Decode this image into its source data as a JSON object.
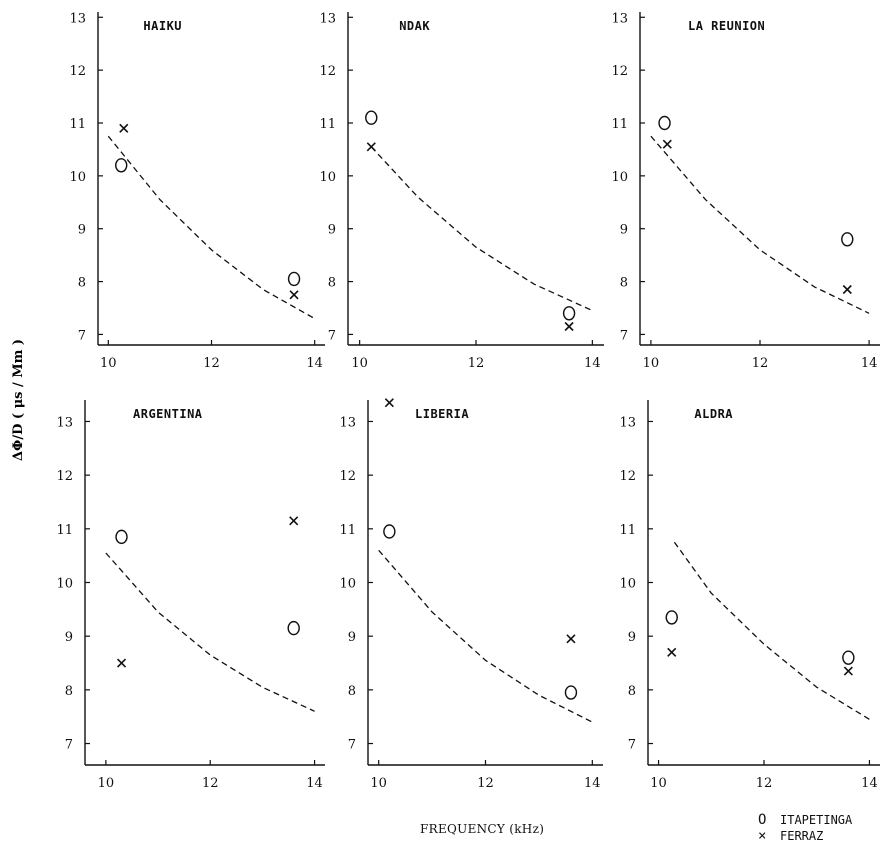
{
  "ylabel": "ΔΦ/D ( μs / Mm )",
  "xlabel": "FREQUENCY   (kHz)",
  "legend": [
    {
      "symbol": "circle",
      "glyph": "O",
      "label": "ITAPETINGA"
    },
    {
      "symbol": "cross",
      "glyph": "×",
      "label": "FERRAZ"
    }
  ],
  "chart_data": [
    {
      "type": "scatter",
      "title": "HAIKU",
      "x_ticks": [
        "10",
        "12",
        "14"
      ],
      "y_ticks": [
        "7",
        "8",
        "9",
        "10",
        "11",
        "12",
        "13"
      ],
      "xlim": [
        9.8,
        14.2
      ],
      "ylim": [
        6.8,
        13.1
      ],
      "series": [
        {
          "name": "ITAPETINGA",
          "marker": "circle",
          "x": [
            10.25,
            13.6
          ],
          "y": [
            10.2,
            8.05
          ]
        },
        {
          "name": "FERRAZ",
          "marker": "cross",
          "x": [
            10.3,
            13.6
          ],
          "y": [
            10.9,
            7.75
          ]
        }
      ],
      "curve": {
        "style": "dashed",
        "x": [
          10.0,
          11.0,
          12.0,
          13.0,
          14.0
        ],
        "y": [
          10.75,
          9.55,
          8.6,
          7.85,
          7.3
        ]
      }
    },
    {
      "type": "scatter",
      "title": "NDAK",
      "x_ticks": [
        "10",
        "12",
        "14"
      ],
      "y_ticks": [
        "7",
        "8",
        "9",
        "10",
        "11",
        "12",
        "13"
      ],
      "xlim": [
        9.8,
        14.2
      ],
      "ylim": [
        6.8,
        13.1
      ],
      "series": [
        {
          "name": "ITAPETINGA",
          "marker": "circle",
          "x": [
            10.2,
            13.6
          ],
          "y": [
            11.1,
            7.4
          ]
        },
        {
          "name": "FERRAZ",
          "marker": "cross",
          "x": [
            10.2,
            13.6
          ],
          "y": [
            10.55,
            7.15
          ]
        }
      ],
      "curve": {
        "style": "dashed",
        "x": [
          10.2,
          11.0,
          12.0,
          13.0,
          14.0
        ],
        "y": [
          10.55,
          9.6,
          8.65,
          7.95,
          7.45
        ]
      }
    },
    {
      "type": "scatter",
      "title": "LA REUNION",
      "x_ticks": [
        "10",
        "12",
        "14"
      ],
      "y_ticks": [
        "7",
        "8",
        "9",
        "10",
        "11",
        "12",
        "13"
      ],
      "xlim": [
        9.8,
        14.2
      ],
      "ylim": [
        6.8,
        13.1
      ],
      "series": [
        {
          "name": "ITAPETINGA",
          "marker": "circle",
          "x": [
            10.25,
            13.6
          ],
          "y": [
            11.0,
            8.8
          ]
        },
        {
          "name": "FERRAZ",
          "marker": "cross",
          "x": [
            10.3,
            13.6
          ],
          "y": [
            10.6,
            7.85
          ]
        }
      ],
      "curve": {
        "style": "dashed",
        "x": [
          10.0,
          11.0,
          12.0,
          13.0,
          14.0
        ],
        "y": [
          10.75,
          9.55,
          8.6,
          7.9,
          7.4
        ]
      }
    },
    {
      "type": "scatter",
      "title": "ARGENTINA",
      "x_ticks": [
        "10",
        "12",
        "14"
      ],
      "y_ticks": [
        "7",
        "8",
        "9",
        "10",
        "11",
        "12",
        "13"
      ],
      "xlim": [
        9.6,
        14.2
      ],
      "ylim": [
        6.6,
        13.4
      ],
      "series": [
        {
          "name": "ITAPETINGA",
          "marker": "circle",
          "x": [
            10.3,
            13.6
          ],
          "y": [
            10.85,
            9.15
          ]
        },
        {
          "name": "FERRAZ",
          "marker": "cross",
          "x": [
            10.3,
            13.6
          ],
          "y": [
            8.5,
            11.15
          ]
        }
      ],
      "curve": {
        "style": "dashed",
        "x": [
          10.0,
          11.0,
          12.0,
          13.0,
          14.0
        ],
        "y": [
          10.55,
          9.45,
          8.65,
          8.05,
          7.6
        ]
      }
    },
    {
      "type": "scatter",
      "title": "LIBERIA",
      "x_ticks": [
        "10",
        "12",
        "14"
      ],
      "y_ticks": [
        "7",
        "8",
        "9",
        "10",
        "11",
        "12",
        "13"
      ],
      "xlim": [
        9.8,
        14.2
      ],
      "ylim": [
        6.6,
        13.4
      ],
      "series": [
        {
          "name": "ITAPETINGA",
          "marker": "circle",
          "x": [
            10.2,
            13.6
          ],
          "y": [
            10.95,
            7.95
          ]
        },
        {
          "name": "FERRAZ",
          "marker": "cross",
          "x": [
            10.2,
            13.6
          ],
          "y": [
            13.35,
            8.95
          ]
        }
      ],
      "curve": {
        "style": "dashed",
        "x": [
          10.0,
          11.0,
          12.0,
          13.0,
          14.0
        ],
        "y": [
          10.6,
          9.45,
          8.55,
          7.9,
          7.4
        ]
      }
    },
    {
      "type": "scatter",
      "title": "ALDRA",
      "x_ticks": [
        "10",
        "12",
        "14"
      ],
      "y_ticks": [
        "7",
        "8",
        "9",
        "10",
        "11",
        "12",
        "13"
      ],
      "xlim": [
        9.8,
        14.2
      ],
      "ylim": [
        6.6,
        13.4
      ],
      "series": [
        {
          "name": "ITAPETINGA",
          "marker": "circle",
          "x": [
            10.25,
            13.6
          ],
          "y": [
            9.35,
            8.6
          ]
        },
        {
          "name": "FERRAZ",
          "marker": "cross",
          "x": [
            10.25,
            13.6
          ],
          "y": [
            8.7,
            8.35
          ]
        }
      ],
      "curve": {
        "style": "dashed",
        "x": [
          10.3,
          11.0,
          12.0,
          13.0,
          14.0
        ],
        "y": [
          10.75,
          9.8,
          8.85,
          8.05,
          7.45
        ]
      }
    }
  ]
}
